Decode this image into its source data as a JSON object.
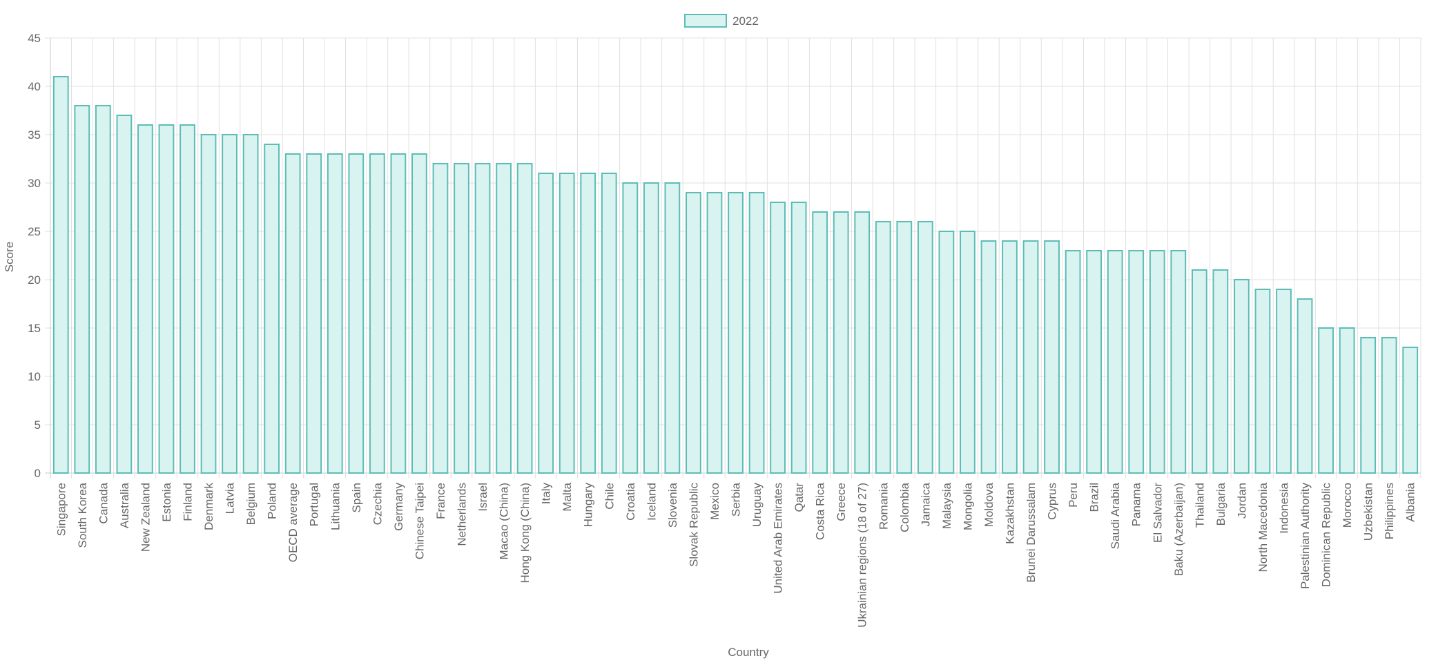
{
  "chart_data": {
    "type": "bar",
    "title": "",
    "xlabel": "Country",
    "ylabel": "Score",
    "ylim": [
      0,
      45
    ],
    "yticks": [
      0,
      5,
      10,
      15,
      20,
      25,
      30,
      35,
      40,
      45
    ],
    "grid": true,
    "legend_placement": "top-center",
    "colors": {
      "bar_fill": "#d9f3f1",
      "bar_border": "#5cbdb6",
      "grid": "#e0e0e0",
      "axis": "#c8c8c8"
    },
    "categories": [
      "Singapore",
      "South Korea",
      "Canada",
      "Australia",
      "New Zealand",
      "Estonia",
      "Finland",
      "Denmark",
      "Latvia",
      "Belgium",
      "Poland",
      "OECD average",
      "Portugal",
      "Lithuania",
      "Spain",
      "Czechia",
      "Germany",
      "Chinese Taipei",
      "France",
      "Netherlands",
      "Israel",
      "Macao (China)",
      "Hong Kong (China)",
      "Italy",
      "Malta",
      "Hungary",
      "Chile",
      "Croatia",
      "Iceland",
      "Slovenia",
      "Slovak Republic",
      "Mexico",
      "Serbia",
      "Uruguay",
      "United Arab Emirates",
      "Qatar",
      "Costa Rica",
      "Greece",
      "Ukrainian regions (18 of 27)",
      "Romania",
      "Colombia",
      "Jamaica",
      "Malaysia",
      "Mongolia",
      "Moldova",
      "Kazakhstan",
      "Brunei Darussalam",
      "Cyprus",
      "Peru",
      "Brazil",
      "Saudi Arabia",
      "Panama",
      "El Salvador",
      "Baku (Azerbaijan)",
      "Thailand",
      "Bulgaria",
      "Jordan",
      "North Macedonia",
      "Indonesia",
      "Palestinian Authority",
      "Dominican Republic",
      "Morocco",
      "Uzbekistan",
      "Philippines",
      "Albania"
    ],
    "series": [
      {
        "name": "2022",
        "values": [
          41,
          38,
          38,
          37,
          36,
          36,
          36,
          35,
          35,
          35,
          34,
          33,
          33,
          33,
          33,
          33,
          33,
          33,
          32,
          32,
          32,
          32,
          32,
          31,
          31,
          31,
          31,
          30,
          30,
          30,
          29,
          29,
          29,
          29,
          28,
          28,
          27,
          27,
          27,
          26,
          26,
          26,
          25,
          25,
          24,
          24,
          24,
          24,
          23,
          23,
          23,
          23,
          23,
          23,
          21,
          21,
          20,
          19,
          19,
          18,
          15,
          15,
          14,
          14,
          13
        ]
      }
    ]
  }
}
